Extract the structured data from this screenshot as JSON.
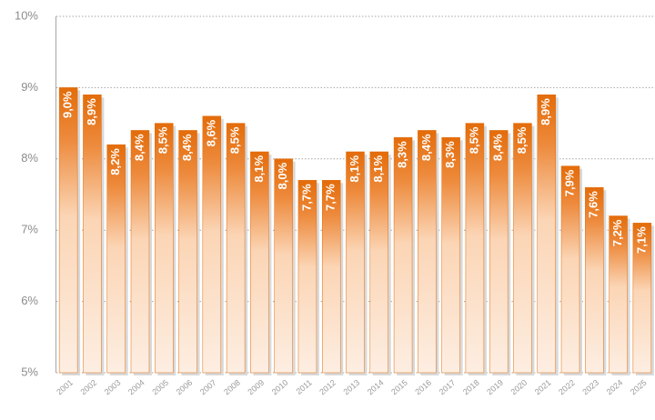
{
  "chart_data": {
    "type": "bar",
    "categories": [
      "2001",
      "2002",
      "2003",
      "2004",
      "2005",
      "2006",
      "2007",
      "2008",
      "2009",
      "2010",
      "2011",
      "2012",
      "2013",
      "2014",
      "2015",
      "2016",
      "2017",
      "2018",
      "2019",
      "2020",
      "2021",
      "2022",
      "2023",
      "2024",
      "2025"
    ],
    "values": [
      9.0,
      8.9,
      8.2,
      8.4,
      8.5,
      8.4,
      8.6,
      8.5,
      8.1,
      8.0,
      7.7,
      7.7,
      8.1,
      8.1,
      8.3,
      8.4,
      8.3,
      8.5,
      8.4,
      8.5,
      8.9,
      7.9,
      7.6,
      7.2,
      7.1
    ],
    "value_labels": [
      "9,0%",
      "8,9%",
      "8,2%",
      "8,4%",
      "8,5%",
      "8,4%",
      "8,6%",
      "8,5%",
      "8,1%",
      "8,0%",
      "7,7%",
      "7,7%",
      "8,1%",
      "8,1%",
      "8,3%",
      "8,4%",
      "8,3%",
      "8,5%",
      "8,4%",
      "8,5%",
      "8,9%",
      "7,9%",
      "7,6%",
      "7,2%",
      "7,1%"
    ],
    "color": "#e36c0a",
    "ylim": [
      5,
      10
    ],
    "yticks": [
      {
        "value": 5,
        "label": "5%"
      },
      {
        "value": 6,
        "label": "6%"
      },
      {
        "value": 7,
        "label": "7%"
      },
      {
        "value": 8,
        "label": "8%"
      },
      {
        "value": 9,
        "label": "9%"
      },
      {
        "value": 10,
        "label": "10%"
      }
    ],
    "grid": true
  }
}
